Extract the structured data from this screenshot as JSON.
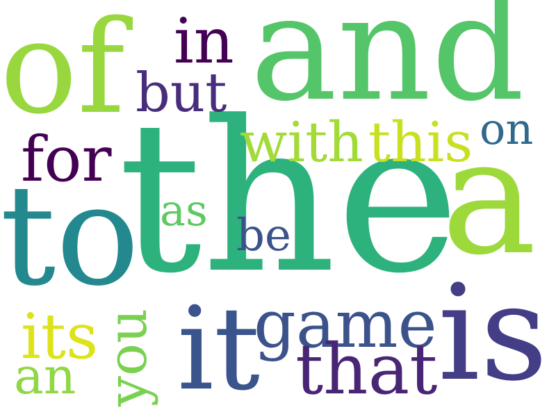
{
  "words": [
    {
      "id": "the",
      "text": "the",
      "color": "#2db27d"
    },
    {
      "id": "and",
      "text": "and",
      "color": "#54c568"
    },
    {
      "id": "of",
      "text": "of",
      "color": "#98d83e"
    },
    {
      "id": "to",
      "text": "to",
      "color": "#23898e"
    },
    {
      "id": "a",
      "text": "a",
      "color": "#9dd93b"
    },
    {
      "id": "is",
      "text": "is",
      "color": "#433e85"
    },
    {
      "id": "it",
      "text": "it",
      "color": "#3a548c"
    },
    {
      "id": "game",
      "text": "game",
      "color": "#3b528b"
    },
    {
      "id": "that",
      "text": "that",
      "color": "#482575"
    },
    {
      "id": "with",
      "text": "with",
      "color": "#a2da37"
    },
    {
      "id": "this",
      "text": "this",
      "color": "#c8e020"
    },
    {
      "id": "in",
      "text": "in",
      "color": "#440154"
    },
    {
      "id": "but",
      "text": "but",
      "color": "#472d7b"
    },
    {
      "id": "for",
      "text": "for",
      "color": "#440154"
    },
    {
      "id": "on",
      "text": "on",
      "color": "#31688e"
    },
    {
      "id": "as",
      "text": "as",
      "color": "#5ec962"
    },
    {
      "id": "be",
      "text": "be",
      "color": "#3b528b"
    },
    {
      "id": "its",
      "text": "its",
      "color": "#dde318"
    },
    {
      "id": "an",
      "text": "an",
      "color": "#8fd744"
    },
    {
      "id": "you",
      "text": "you",
      "color": "#7ad151"
    }
  ]
}
